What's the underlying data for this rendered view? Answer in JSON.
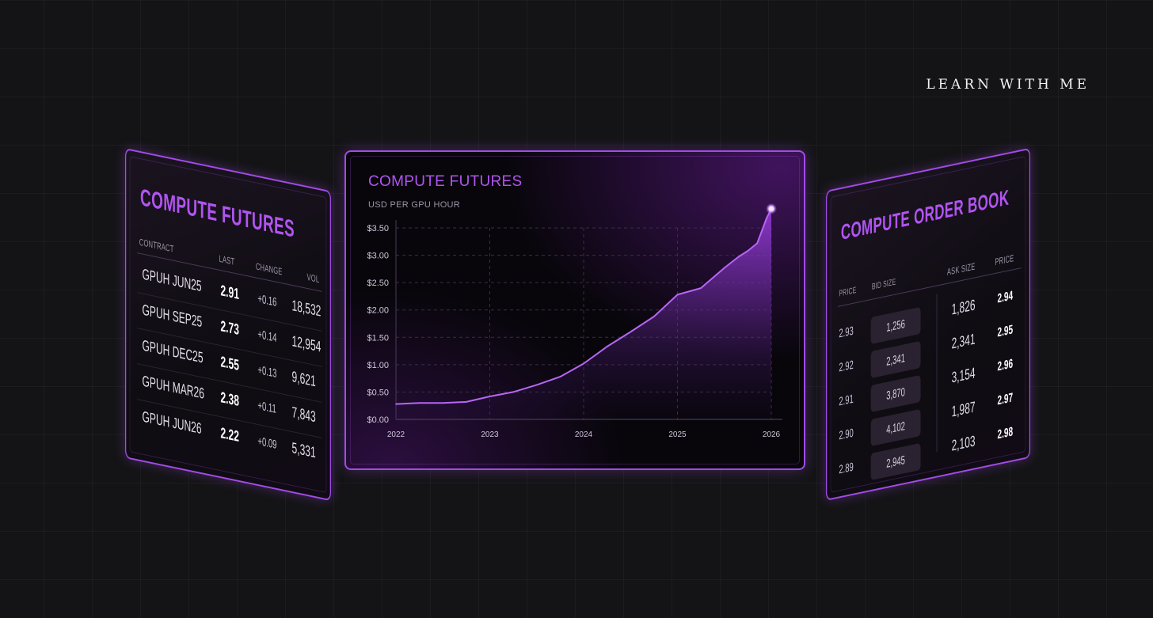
{
  "brand": "LEARN WITH ME",
  "colors": {
    "accent": "#a24be8",
    "title": "#b154f2",
    "background": "#141416"
  },
  "left_panel": {
    "title": "COMPUTE FUTURES",
    "headers": {
      "contract": "CONTRACT",
      "last": "LAST",
      "change": "CHANGE",
      "vol": "VOL"
    },
    "rows": [
      {
        "contract": "GPUH JUN25",
        "last": "2.91",
        "change": "+0.16",
        "vol": "18,532"
      },
      {
        "contract": "GPUH SEP25",
        "last": "2.73",
        "change": "+0.14",
        "vol": "12,954"
      },
      {
        "contract": "GPUH DEC25",
        "last": "2.55",
        "change": "+0.13",
        "vol": "9,621"
      },
      {
        "contract": "GPUH MAR26",
        "last": "2.38",
        "change": "+0.11",
        "vol": "7,843"
      },
      {
        "contract": "GPUH JUN26",
        "last": "2.22",
        "change": "+0.09",
        "vol": "5,331"
      }
    ]
  },
  "main_panel": {
    "title": "COMPUTE FUTURES",
    "subtitle": "USD PER GPU HOUR"
  },
  "chart_data": {
    "type": "area",
    "title": "COMPUTE FUTURES",
    "ylabel": "USD PER GPU HOUR",
    "xlabel": "",
    "x_ticks": [
      "2022",
      "2023",
      "2024",
      "2025",
      "2026"
    ],
    "y_ticks": [
      "$0.00",
      "$0.50",
      "$1.00",
      "$1.50",
      "$2.00",
      "$2.50",
      "$3.00",
      "$3.50"
    ],
    "xlim": [
      2022.0,
      2026.0
    ],
    "ylim": [
      0,
      3.5
    ],
    "grid": true,
    "series": [
      {
        "x": [
          2022.0,
          2022.25,
          2022.5,
          2022.75,
          2023.0,
          2023.25,
          2023.5,
          2023.75,
          2024.0,
          2024.25,
          2024.5,
          2024.75,
          2025.0,
          2025.25,
          2025.5,
          2025.65,
          2025.75,
          2025.85,
          2025.95,
          2026.0
        ],
        "values": [
          0.28,
          0.3,
          0.3,
          0.32,
          0.42,
          0.5,
          0.63,
          0.78,
          1.02,
          1.33,
          1.6,
          1.88,
          2.28,
          2.4,
          2.77,
          2.97,
          3.08,
          3.22,
          3.68,
          3.85
        ]
      }
    ]
  },
  "right_panel": {
    "title": "COMPUTE ORDER BOOK",
    "headers": {
      "price": "PRICE",
      "bid_size": "BID SIZE",
      "ask_size": "ASK SIZE",
      "ask_price": "PRICE"
    },
    "bids": [
      {
        "price": "2.93",
        "size": "1,256"
      },
      {
        "price": "2.92",
        "size": "2,341"
      },
      {
        "price": "2.91",
        "size": "3,870"
      },
      {
        "price": "2.90",
        "size": "4,102"
      },
      {
        "price": "2.89",
        "size": "2,945"
      }
    ],
    "asks": [
      {
        "size": "1,826",
        "price": "2.94"
      },
      {
        "size": "2,341",
        "price": "2.95"
      },
      {
        "size": "3,154",
        "price": "2.96"
      },
      {
        "size": "1,987",
        "price": "2.97"
      },
      {
        "size": "2,103",
        "price": "2.98"
      }
    ]
  }
}
